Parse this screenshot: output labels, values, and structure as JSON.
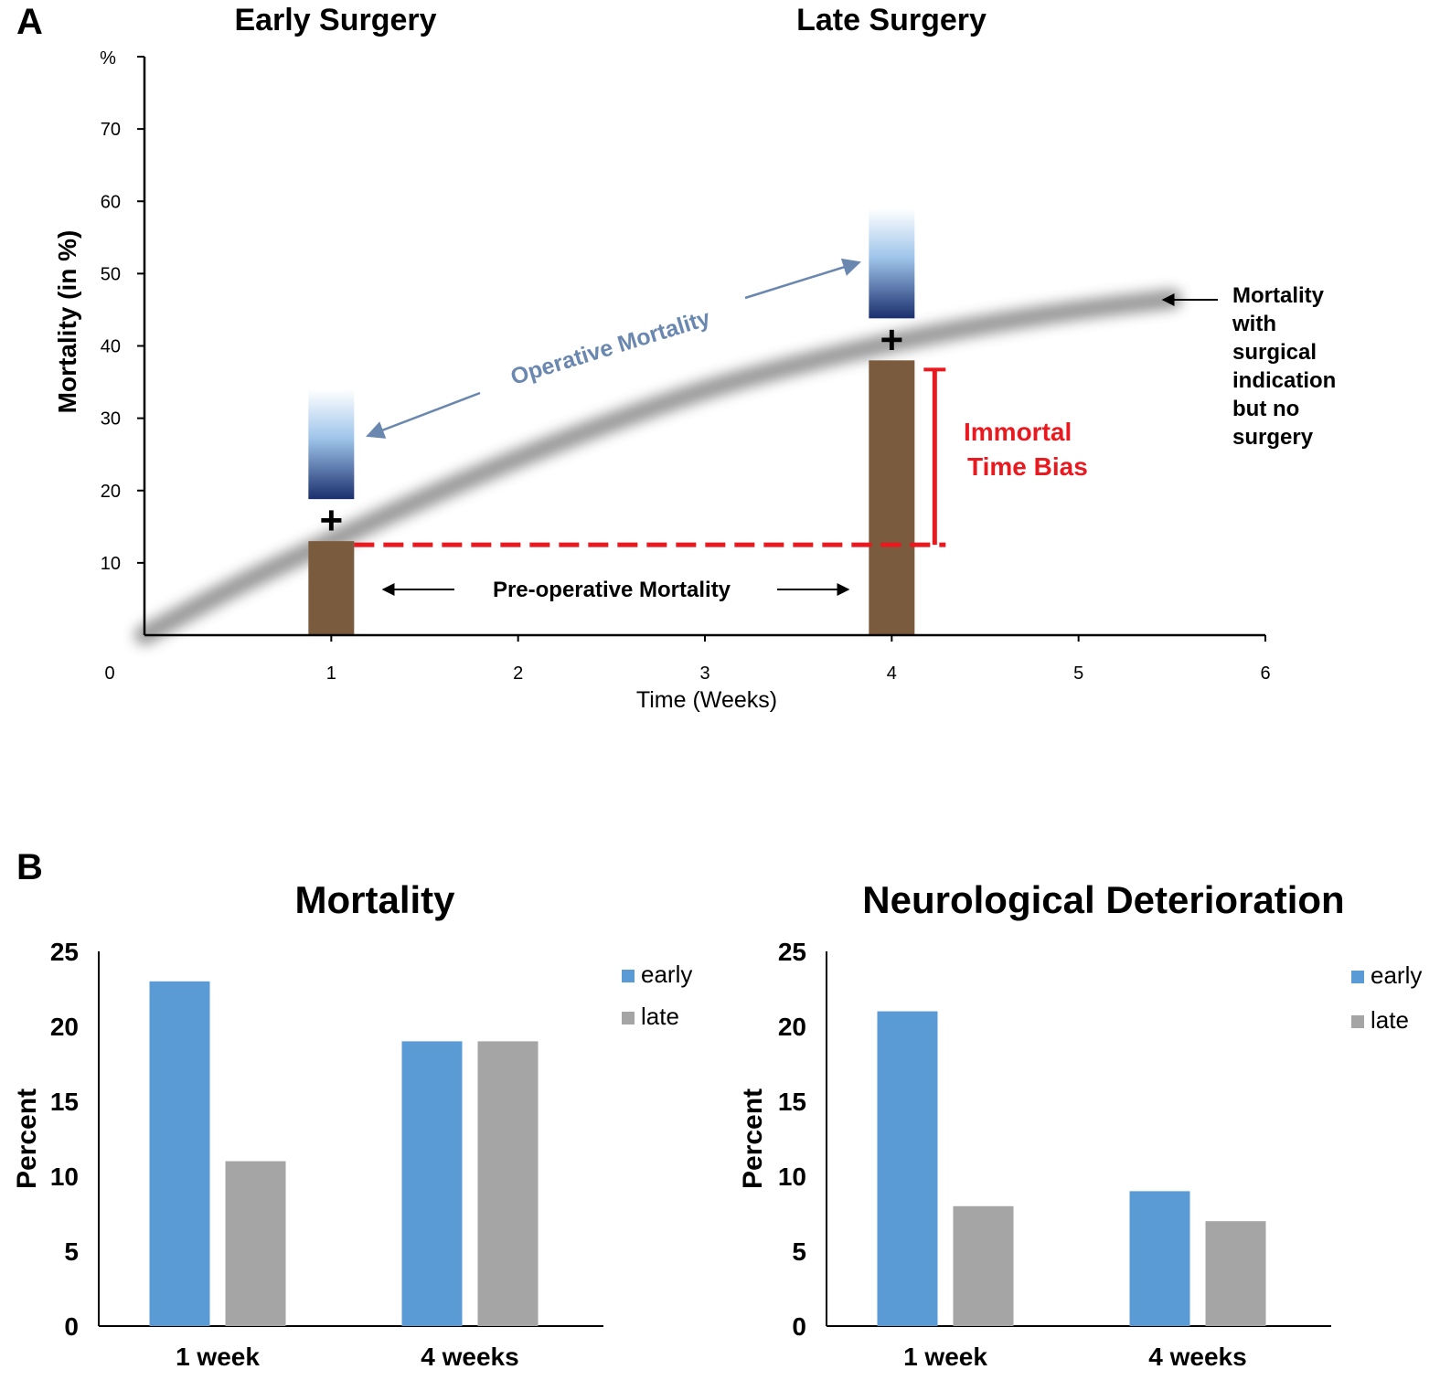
{
  "chart_data": [
    {
      "panel": "A",
      "type": "line",
      "headings": [
        "Early Surgery",
        "Late Surgery"
      ],
      "xlabel": "Time (Weeks)",
      "ylabel": "Mortality (in %)",
      "y_unit": "%",
      "x_ticks": [
        "0",
        "1",
        "2",
        "3",
        "4",
        "5",
        "6"
      ],
      "y_ticks": [
        "10",
        "20",
        "30",
        "40",
        "50",
        "60",
        "70"
      ],
      "xlim": [
        0,
        6
      ],
      "ylim": [
        0,
        80
      ],
      "curve": {
        "name": "Mortality with surgical indication but no surgery",
        "x": [
          0,
          0.5,
          1,
          1.5,
          2,
          2.5,
          3,
          3.5,
          4,
          4.5,
          5,
          5.5
        ],
        "y": [
          0,
          7,
          13,
          19,
          24.5,
          29.5,
          34,
          37.5,
          40.5,
          43,
          45,
          46.5
        ]
      },
      "bars": [
        {
          "x": 1,
          "preoperative": 13,
          "operative_top": 34
        },
        {
          "x": 4,
          "preoperative": 38,
          "operative_top": 59
        }
      ],
      "bias_reference": 12.5,
      "annotations": {
        "operative": "Operative Mortality",
        "preoperative": "Pre-operative Mortality",
        "bias_lines": [
          "Immortal",
          "Time Bias"
        ],
        "curve_label_lines": [
          "Mortality",
          "with",
          "surgical",
          "indication",
          "but no",
          "surgery"
        ],
        "plus": "+"
      },
      "colors": {
        "preop": "#7a5b3e",
        "bias": "#e8191f",
        "operative_arrow": "#6a87b0",
        "operative_dark": "#1b2f6e",
        "curve": "#909090"
      }
    },
    {
      "panel": "B",
      "type": "bar",
      "title": "Mortality",
      "ylabel": "Percent",
      "categories": [
        "1 week",
        "4 weeks"
      ],
      "series": [
        {
          "name": "early",
          "values": [
            23,
            19
          ]
        },
        {
          "name": "late",
          "values": [
            11,
            19
          ]
        }
      ],
      "ylim": [
        0,
        25
      ],
      "y_ticks": [
        "0",
        "5",
        "10",
        "15",
        "20",
        "25"
      ],
      "legend": "top-right"
    },
    {
      "panel": "B",
      "type": "bar",
      "title": "Neurological Deterioration",
      "ylabel": "Percent",
      "categories": [
        "1 week",
        "4 weeks"
      ],
      "series": [
        {
          "name": "early",
          "values": [
            21,
            9
          ]
        },
        {
          "name": "late",
          "values": [
            8,
            7
          ]
        }
      ],
      "ylim": [
        0,
        25
      ],
      "y_ticks": [
        "0",
        "5",
        "10",
        "15",
        "20",
        "25"
      ],
      "legend": "top-right"
    }
  ],
  "panel_labels": [
    "A",
    "B"
  ],
  "colors": {
    "early": "#5b9bd5",
    "late": "#a5a5a5",
    "axis": "#000000"
  }
}
